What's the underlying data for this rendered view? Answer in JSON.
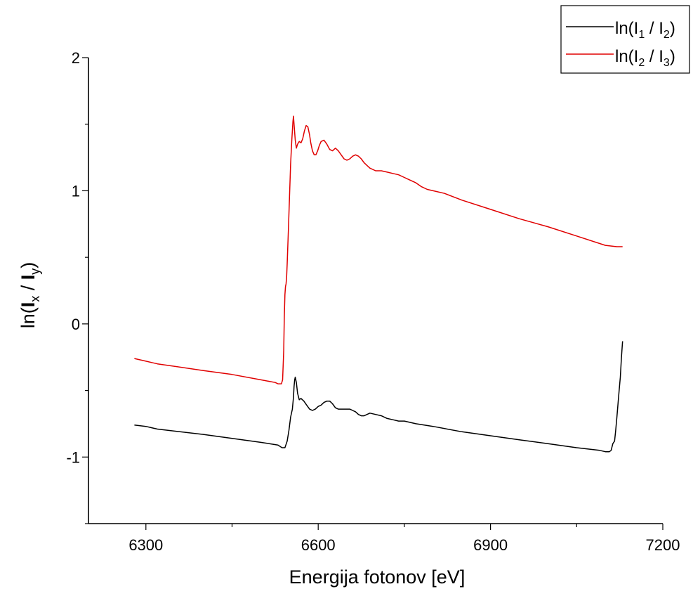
{
  "chart_data": {
    "type": "line",
    "title": "",
    "xlabel": "Energija fotonov [eV]",
    "ylabel": {
      "prefix": "ln(",
      "main1": "I",
      "sub1": "x",
      "sep": " / ",
      "main2": "I",
      "sub2": "y",
      "suffix": ")"
    },
    "xlim": [
      6200,
      7200
    ],
    "ylim": [
      -1.5,
      2
    ],
    "x_ticks": [
      6300,
      6600,
      6900,
      7200
    ],
    "y_ticks": [
      -1,
      0,
      1,
      2
    ],
    "legend_position": "top-right",
    "grid": false,
    "series": [
      {
        "name": "ln(I1 / I2)",
        "name_parts": {
          "prefix": "ln(I",
          "sub1": "1",
          "sep": " / I",
          "sub2": "2",
          "suffix": ")"
        },
        "color": "#000000",
        "x": [
          6280,
          6300,
          6310,
          6320,
          6400,
          6450,
          6500,
          6530,
          6537,
          6542,
          6546,
          6549,
          6552,
          6555,
          6557,
          6558,
          6559,
          6560,
          6562,
          6564,
          6567,
          6570,
          6575,
          6580,
          6585,
          6590,
          6595,
          6600,
          6605,
          6610,
          6615,
          6620,
          6625,
          6630,
          6635,
          6640,
          6645,
          6650,
          6655,
          6660,
          6665,
          6670,
          6675,
          6680,
          6685,
          6690,
          6700,
          6710,
          6720,
          6730,
          6740,
          6750,
          6760,
          6770,
          6800,
          6850,
          6900,
          6950,
          7000,
          7050,
          7090,
          7100,
          7107,
          7110,
          7113,
          7116,
          7118,
          7120,
          7122,
          7124,
          7126,
          7128,
          7130
        ],
        "values": [
          -0.76,
          -0.77,
          -0.78,
          -0.79,
          -0.83,
          -0.86,
          -0.89,
          -0.91,
          -0.93,
          -0.93,
          -0.88,
          -0.8,
          -0.7,
          -0.64,
          -0.55,
          -0.47,
          -0.42,
          -0.4,
          -0.44,
          -0.52,
          -0.57,
          -0.56,
          -0.58,
          -0.61,
          -0.64,
          -0.65,
          -0.64,
          -0.62,
          -0.61,
          -0.59,
          -0.58,
          -0.58,
          -0.6,
          -0.63,
          -0.64,
          -0.64,
          -0.64,
          -0.64,
          -0.64,
          -0.65,
          -0.66,
          -0.68,
          -0.69,
          -0.69,
          -0.68,
          -0.67,
          -0.68,
          -0.69,
          -0.71,
          -0.72,
          -0.73,
          -0.73,
          -0.74,
          -0.75,
          -0.77,
          -0.81,
          -0.84,
          -0.87,
          -0.9,
          -0.93,
          -0.95,
          -0.96,
          -0.96,
          -0.95,
          -0.9,
          -0.88,
          -0.8,
          -0.7,
          -0.6,
          -0.5,
          -0.4,
          -0.25,
          -0.13
        ]
      },
      {
        "name": "ln(I2 / I3)",
        "name_parts": {
          "prefix": "ln(I",
          "sub1": "2",
          "sep": " / I",
          "sub2": "3",
          "suffix": ")"
        },
        "color": "#e00000",
        "x": [
          6280,
          6300,
          6310,
          6320,
          6400,
          6450,
          6500,
          6525,
          6530,
          6534,
          6536,
          6538,
          6540,
          6541,
          6542,
          6543,
          6544,
          6545,
          6546,
          6548,
          6550,
          6552,
          6554,
          6556,
          6557,
          6558,
          6560,
          6562,
          6564,
          6567,
          6570,
          6573,
          6576,
          6579,
          6582,
          6585,
          6587,
          6590,
          6593,
          6596,
          6599,
          6602,
          6605,
          6610,
          6615,
          6620,
          6625,
          6630,
          6635,
          6640,
          6645,
          6650,
          6655,
          6660,
          6665,
          6670,
          6675,
          6680,
          6685,
          6690,
          6700,
          6710,
          6720,
          6730,
          6740,
          6750,
          6760,
          6770,
          6780,
          6790,
          6800,
          6820,
          6850,
          6900,
          6950,
          7000,
          7050,
          7100,
          7120,
          7130
        ],
        "values": [
          -0.26,
          -0.28,
          -0.29,
          -0.3,
          -0.35,
          -0.38,
          -0.42,
          -0.44,
          -0.45,
          -0.45,
          -0.45,
          -0.42,
          -0.2,
          0.05,
          0.22,
          0.28,
          0.3,
          0.35,
          0.45,
          0.7,
          0.95,
          1.2,
          1.38,
          1.52,
          1.56,
          1.5,
          1.38,
          1.32,
          1.35,
          1.37,
          1.36,
          1.39,
          1.45,
          1.49,
          1.48,
          1.42,
          1.36,
          1.3,
          1.27,
          1.27,
          1.3,
          1.34,
          1.37,
          1.38,
          1.35,
          1.31,
          1.3,
          1.32,
          1.3,
          1.27,
          1.24,
          1.23,
          1.24,
          1.26,
          1.27,
          1.26,
          1.24,
          1.21,
          1.19,
          1.17,
          1.15,
          1.15,
          1.14,
          1.13,
          1.12,
          1.1,
          1.08,
          1.06,
          1.03,
          1.01,
          1,
          0.98,
          0.93,
          0.86,
          0.79,
          0.73,
          0.66,
          0.59,
          0.58,
          0.58
        ]
      }
    ]
  }
}
